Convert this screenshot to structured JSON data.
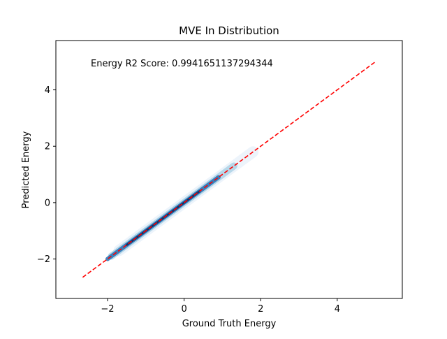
{
  "chart_data": {
    "type": "scatter",
    "title": "MVE In Distribution",
    "xlabel": "Ground Truth Energy",
    "ylabel": "Predicted Energy",
    "xlim": [
      -3.35,
      5.7
    ],
    "ylim": [
      -3.4,
      5.75
    ],
    "xticks": [
      -2,
      0,
      2,
      4
    ],
    "xtick_labels": [
      "−2",
      "0",
      "2",
      "4"
    ],
    "yticks": [
      -2,
      0,
      2,
      4
    ],
    "ytick_labels": [
      "−2",
      "0",
      "2",
      "4"
    ],
    "annotation": "Energy R2 Score: 0.9941651137294344",
    "grid": false,
    "reference_line": {
      "x": [
        -2.65,
        5.0
      ],
      "y": [
        -2.65,
        5.0
      ],
      "color": "#ff0000",
      "style": "dashed"
    },
    "density_band": {
      "x_range": [
        -2.0,
        1.8
      ],
      "slope": 1.0,
      "colors": {
        "core": "#08306b",
        "mid": "#2171b5",
        "outer": "#9ecae1",
        "halo": "#deebf7"
      }
    }
  }
}
